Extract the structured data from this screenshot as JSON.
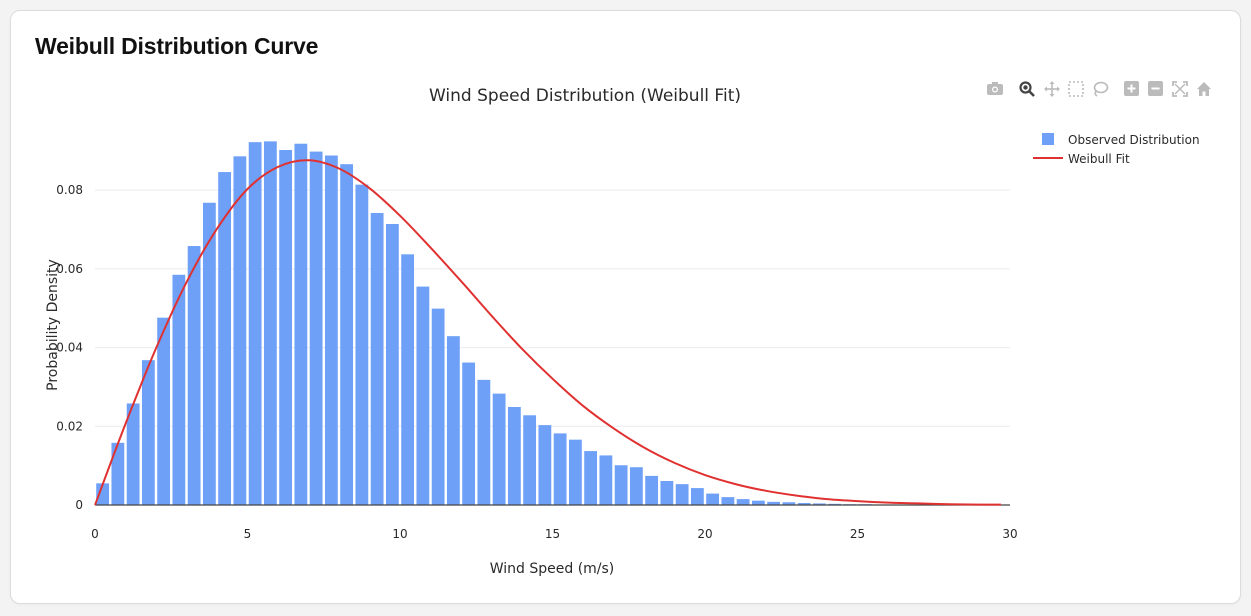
{
  "card": {
    "title": "Weibull Distribution Curve"
  },
  "modebar": {
    "buttons": [
      {
        "name": "camera-icon",
        "label": "Download plot as a png"
      },
      {
        "name": "zoom-icon",
        "label": "Zoom"
      },
      {
        "name": "pan-icon",
        "label": "Pan"
      },
      {
        "name": "box-select-icon",
        "label": "Box Select"
      },
      {
        "name": "lasso-select-icon",
        "label": "Lasso Select"
      },
      {
        "name": "zoom-in-icon",
        "label": "Zoom in"
      },
      {
        "name": "zoom-out-icon",
        "label": "Zoom out"
      },
      {
        "name": "autoscale-icon",
        "label": "Autoscale"
      },
      {
        "name": "reset-axes-icon",
        "label": "Reset axes"
      }
    ]
  },
  "colors": {
    "bar": "#6ea0f7",
    "line": "#e03131",
    "grid": "#ebebeb",
    "axis": "#444444",
    "text": "#2a2a2a",
    "active_icon": "#444444",
    "inactive_icon": "#bbbbbb"
  },
  "chart_data": {
    "type": "bar",
    "title": "Wind Speed Distribution (Weibull Fit)",
    "xlabel": "Wind Speed (m/s)",
    "ylabel": "Probability Density",
    "xlim": [
      0,
      30
    ],
    "ylim": [
      0,
      0.093
    ],
    "xticks": [
      0,
      5,
      10,
      15,
      20,
      25,
      30
    ],
    "xtick_labels": [
      "0",
      "5",
      "10",
      "15",
      "20",
      "25",
      "30"
    ],
    "yticks": [
      0,
      0.02,
      0.04,
      0.06,
      0.08
    ],
    "ytick_labels": [
      "0",
      "0.02",
      "0.04",
      "0.06",
      "0.08"
    ],
    "grid": true,
    "legend_position": "top-right",
    "series": [
      {
        "name": "Observed Distribution",
        "type": "bar",
        "bin_width": 0.5,
        "bin_start": 0.25,
        "values": [
          0.0055,
          0.0158,
          0.0258,
          0.0368,
          0.0476,
          0.0585,
          0.0658,
          0.0768,
          0.0846,
          0.0886,
          0.0922,
          0.0924,
          0.0902,
          0.0918,
          0.0898,
          0.0888,
          0.0866,
          0.0814,
          0.0742,
          0.0714,
          0.0637,
          0.0555,
          0.0499,
          0.0429,
          0.0362,
          0.0318,
          0.0283,
          0.0249,
          0.0228,
          0.0203,
          0.0182,
          0.0166,
          0.0137,
          0.0126,
          0.0101,
          0.0096,
          0.0074,
          0.0061,
          0.0053,
          0.0043,
          0.0029,
          0.002,
          0.0015,
          0.0011,
          0.0008,
          0.0007,
          0.0005,
          0.0004,
          0.0003,
          0.0002,
          0.0002,
          0.0001,
          0.0001,
          0.0001,
          0.0001,
          0.0,
          0.0,
          0.0,
          0.0
        ]
      },
      {
        "name": "Weibull Fit",
        "type": "line",
        "shape_k": 2.0,
        "scale_lambda": 9.8,
        "x": [
          0.0,
          1.0,
          2.0,
          3.0,
          4.0,
          5.0,
          6.0,
          7.0,
          8.0,
          9.0,
          10.0,
          11.0,
          12.0,
          13.0,
          14.0,
          15.0,
          16.0,
          17.0,
          18.0,
          19.0,
          20.0,
          21.0,
          22.0,
          23.0,
          24.0,
          25.0,
          26.0,
          27.0,
          28.0,
          29.0,
          29.7
        ],
        "y": [
          0.0,
          0.0206,
          0.0398,
          0.0566,
          0.0702,
          0.0803,
          0.0859,
          0.0876,
          0.0855,
          0.0805,
          0.0735,
          0.0654,
          0.0569,
          0.0481,
          0.0397,
          0.0321,
          0.0252,
          0.0195,
          0.0146,
          0.0107,
          0.0076,
          0.0053,
          0.0036,
          0.0024,
          0.0015,
          0.001,
          0.0006,
          0.0004,
          0.0002,
          0.0001,
          0.0001
        ]
      }
    ]
  }
}
